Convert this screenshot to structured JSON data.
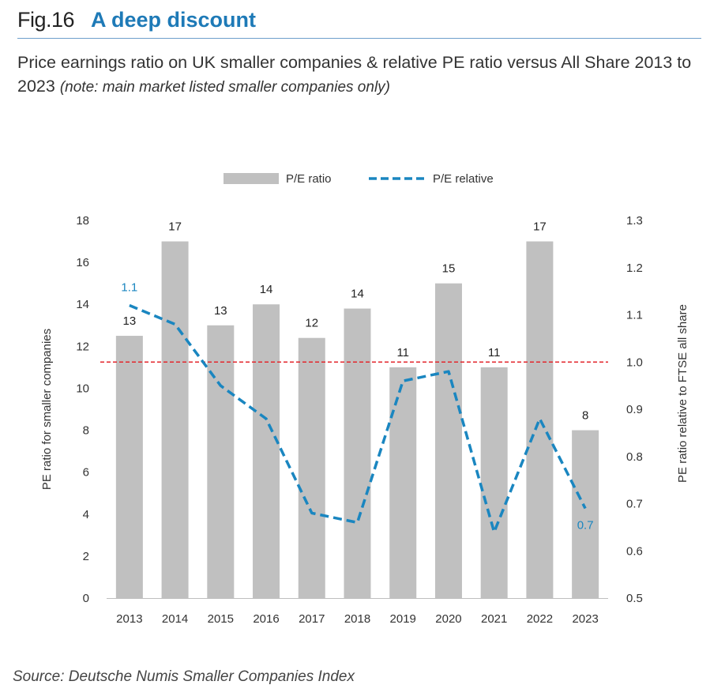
{
  "header": {
    "fig_label": "Fig.16",
    "title": "A deep discount"
  },
  "subtitle": {
    "main": "Price earnings ratio on UK smaller companies & relative PE ratio versus All Share 2013 to 2023",
    "note": "(note: main market listed smaller companies only)"
  },
  "source": "Source: Deutsche Numis Smaller Companies Index",
  "colors": {
    "accent": "#1e7ab7",
    "bar": "#c0c0c0",
    "line": "#1a86c0",
    "reference": "#e3262c"
  },
  "chart_data": {
    "type": "bar",
    "categories": [
      "2013",
      "2014",
      "2015",
      "2016",
      "2017",
      "2018",
      "2019",
      "2020",
      "2021",
      "2022",
      "2023"
    ],
    "series": [
      {
        "name": "P/E ratio",
        "type": "bar",
        "axis": "left",
        "values": [
          12.5,
          17,
          13,
          14,
          12.4,
          13.8,
          11,
          15,
          11,
          17,
          8
        ],
        "data_labels": [
          "13",
          "17",
          "13",
          "14",
          "12",
          "14",
          "11",
          "15",
          "11",
          "17",
          "8"
        ]
      },
      {
        "name": "P/E relative",
        "type": "line",
        "style": "dashed",
        "axis": "right",
        "values": [
          1.12,
          1.08,
          0.95,
          0.88,
          0.68,
          0.66,
          0.96,
          0.98,
          0.64,
          0.88,
          0.69
        ],
        "endpoint_labels": {
          "first": "1.1",
          "last": "0.7"
        }
      }
    ],
    "reference_line": {
      "axis": "right",
      "value": 1.0,
      "style": "dashed"
    },
    "ylabel": "PE ratio for smaller companies",
    "y2label": "PE ratio relative to FTSE all share",
    "ylim": [
      0,
      18
    ],
    "y2lim": [
      0.5,
      1.3
    ],
    "yticks": [
      "0",
      "2",
      "4",
      "6",
      "8",
      "10",
      "12",
      "14",
      "16",
      "18"
    ],
    "y2ticks": [
      "0.5",
      "0.6",
      "0.7",
      "0.8",
      "0.9",
      "1.0",
      "1.1",
      "1.2",
      "1.3"
    ],
    "legend_position": "top",
    "grid": false
  }
}
